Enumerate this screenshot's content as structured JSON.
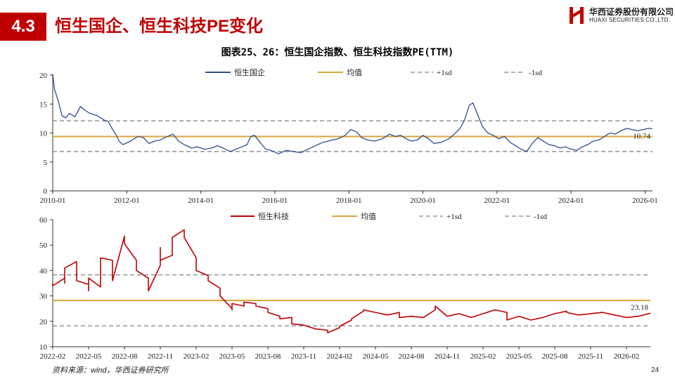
{
  "header": {
    "section_number": "4.3",
    "title": "恒生国企、恒生科技PE变化",
    "logo_cn": "华西证券股份有限公司",
    "logo_en": "HUAXI SECURITIES CO.,LTD."
  },
  "chart_caption": "图表25、26：恒生国企指数、恒生科技指数PE(TTM)",
  "footer": {
    "source": "资料来源：wind，华西证券研究所",
    "page_number": "24"
  },
  "colors": {
    "brand_red": "#c00000",
    "series_blue": "#2f4f8f",
    "series_red": "#c00000",
    "mean_gold": "#dba53a",
    "sd_gray": "#9a9a9a"
  },
  "chart_data": [
    {
      "type": "line",
      "title": "",
      "x_unit": "year",
      "xlim": [
        2010.0,
        2026.2
      ],
      "ylim": [
        0,
        20
      ],
      "yticks": [
        0,
        5,
        10,
        15,
        20
      ],
      "xticks": [
        {
          "x": 2010.0,
          "label": "2010-01"
        },
        {
          "x": 2012.0,
          "label": "2012-01"
        },
        {
          "x": 2014.0,
          "label": "2014-01"
        },
        {
          "x": 2016.0,
          "label": "2016-01"
        },
        {
          "x": 2018.0,
          "label": "2018-01"
        },
        {
          "x": 2020.0,
          "label": "2020-01"
        },
        {
          "x": 2022.0,
          "label": "2022-01"
        },
        {
          "x": 2024.0,
          "label": "2024-01"
        },
        {
          "x": 2026.0,
          "label": "2026-01"
        }
      ],
      "legend": [
        "恒生国企",
        "均值",
        "+1sd",
        "-1sd"
      ],
      "legend_position": "top",
      "reference_lines": {
        "mean": 9.4,
        "plus_1sd": 12.1,
        "minus_1sd": 6.8
      },
      "end_label": "10.74",
      "series": [
        {
          "name": "恒生国企",
          "x": [
            2010.0,
            2010.05,
            2010.15,
            2010.25,
            2010.35,
            2010.45,
            2010.6,
            2010.75,
            2010.85,
            2011.0,
            2011.2,
            2011.4,
            2011.5,
            2011.6,
            2011.7,
            2011.8,
            2011.9,
            2012.1,
            2012.3,
            2012.45,
            2012.6,
            2012.75,
            2012.9,
            2013.1,
            2013.25,
            2013.4,
            2013.55,
            2013.75,
            2013.9,
            2014.1,
            2014.3,
            2014.45,
            2014.6,
            2014.8,
            2014.95,
            2015.1,
            2015.25,
            2015.35,
            2015.45,
            2015.6,
            2015.75,
            2015.9,
            2016.1,
            2016.3,
            2016.5,
            2016.7,
            2016.9,
            2017.1,
            2017.3,
            2017.5,
            2017.7,
            2017.9,
            2018.05,
            2018.2,
            2018.35,
            2018.5,
            2018.7,
            2018.9,
            2019.1,
            2019.25,
            2019.4,
            2019.55,
            2019.7,
            2019.85,
            2020.0,
            2020.15,
            2020.3,
            2020.5,
            2020.7,
            2020.85,
            2021.0,
            2021.12,
            2021.25,
            2021.35,
            2021.45,
            2021.6,
            2021.75,
            2021.9,
            2022.05,
            2022.2,
            2022.35,
            2022.5,
            2022.65,
            2022.8,
            2022.95,
            2023.1,
            2023.25,
            2023.4,
            2023.55,
            2023.7,
            2023.85,
            2024.0,
            2024.15,
            2024.3,
            2024.45,
            2024.6,
            2024.75,
            2024.9,
            2025.05,
            2025.2,
            2025.35,
            2025.5,
            2025.65,
            2025.8,
            2025.95,
            2026.1,
            2026.2
          ],
          "values": [
            20.2,
            17.5,
            15.5,
            13.0,
            12.6,
            13.4,
            12.8,
            14.6,
            14.0,
            13.4,
            13.0,
            12.2,
            12.0,
            10.8,
            9.8,
            8.5,
            8.0,
            8.6,
            9.4,
            9.2,
            8.2,
            8.6,
            8.8,
            9.4,
            9.8,
            8.6,
            8.0,
            7.4,
            7.6,
            7.2,
            7.4,
            7.8,
            7.4,
            6.8,
            7.2,
            7.6,
            8.0,
            9.4,
            9.6,
            8.4,
            7.2,
            7.0,
            6.4,
            7.0,
            6.8,
            6.6,
            7.2,
            7.8,
            8.4,
            8.7,
            9.0,
            9.6,
            10.6,
            10.2,
            9.2,
            8.8,
            8.6,
            9.0,
            9.8,
            9.4,
            9.6,
            9.0,
            8.6,
            8.8,
            9.6,
            9.0,
            8.2,
            8.4,
            9.0,
            9.8,
            10.8,
            12.2,
            14.8,
            15.2,
            13.6,
            11.2,
            10.0,
            9.6,
            9.0,
            9.4,
            8.4,
            7.8,
            7.2,
            6.8,
            8.2,
            9.2,
            8.6,
            8.0,
            7.8,
            7.4,
            7.6,
            7.2,
            7.0,
            7.6,
            8.0,
            8.6,
            8.8,
            9.4,
            10.0,
            9.8,
            10.4,
            10.8,
            10.6,
            10.4,
            10.6,
            10.8,
            10.74
          ]
        },
        {
          "name": "均值",
          "constant": 9.4
        },
        {
          "name": "+1sd",
          "constant": 12.1
        },
        {
          "name": "-1sd",
          "constant": 6.8
        }
      ]
    },
    {
      "type": "line",
      "title": "",
      "x_unit": "month",
      "xlim": [
        "2022-02",
        "2026-04"
      ],
      "ylim": [
        10,
        60
      ],
      "yticks": [
        10,
        20,
        30,
        40,
        50,
        60
      ],
      "xticks": [
        "2022-02",
        "2022-05",
        "2022-08",
        "2022-11",
        "2023-02",
        "2023-05",
        "2023-08",
        "2023-11",
        "2024-02",
        "2024-05",
        "2024-08",
        "2024-11",
        "2025-02",
        "2025-05",
        "2025-08",
        "2025-11",
        "2026-02"
      ],
      "legend": [
        "恒生科技",
        "均值",
        "+1sd",
        "-1sd"
      ],
      "legend_position": "top",
      "reference_lines": {
        "mean": 28.2,
        "plus_1sd": 38.3,
        "minus_1sd": 18.2
      },
      "end_label": "23.18",
      "series": [
        {
          "name": "恒生科技",
          "x": [
            "2022-02",
            "2022-02",
            "2022-03",
            "2022-03",
            "2022-03",
            "2022-04",
            "2022-04",
            "2022-05",
            "2022-05",
            "2022-05",
            "2022-06",
            "2022-06",
            "2022-06",
            "2022-07",
            "2022-07",
            "2022-08",
            "2022-08",
            "2022-08",
            "2022-09",
            "2022-09",
            "2022-09",
            "2022-10",
            "2022-10",
            "2022-11",
            "2022-11",
            "2022-11",
            "2022-12",
            "2022-12",
            "2023-01",
            "2023-01",
            "2023-01",
            "2023-02",
            "2023-02",
            "2023-02",
            "2023-03",
            "2023-03",
            "2023-04",
            "2023-04",
            "2023-04",
            "2023-05",
            "2023-05",
            "2023-05",
            "2023-06",
            "2023-06",
            "2023-07",
            "2023-07",
            "2023-08",
            "2023-08",
            "2023-09",
            "2023-09",
            "2023-10",
            "2023-10",
            "2023-11",
            "2023-12",
            "2024-01",
            "2024-01",
            "2024-02",
            "2024-02",
            "2024-03",
            "2024-03",
            "2024-04",
            "2024-04",
            "2024-05",
            "2024-06",
            "2024-07",
            "2024-07",
            "2024-08",
            "2024-09",
            "2024-10",
            "2024-10",
            "2024-11",
            "2024-12",
            "2025-01",
            "2025-01",
            "2025-02",
            "2025-03",
            "2025-04",
            "2025-04",
            "2025-05",
            "2025-06",
            "2025-07",
            "2025-08",
            "2025-09",
            "2025-09",
            "2025-10",
            "2025-11",
            "2025-12",
            "2026-01",
            "2026-02",
            "2026-03",
            "2026-04"
          ],
          "values": [
            35.0,
            34.0,
            37.0,
            35.0,
            41.0,
            43.5,
            36.0,
            34.5,
            32.0,
            37.0,
            33.5,
            42.0,
            45.0,
            44.0,
            36.0,
            53.5,
            52.0,
            50.5,
            44.0,
            42.0,
            40.0,
            37.0,
            32.0,
            42.0,
            49.0,
            44.0,
            46.0,
            53.0,
            56.0,
            55.0,
            53.0,
            45.0,
            40.0,
            40.0,
            38.0,
            36.0,
            33.0,
            31.5,
            30.0,
            25.0,
            24.5,
            27.0,
            26.0,
            27.5,
            27.0,
            26.0,
            25.0,
            23.5,
            22.0,
            21.0,
            21.5,
            19.0,
            18.5,
            17.0,
            16.5,
            15.5,
            17.5,
            18.0,
            20.5,
            21.0,
            24.0,
            24.5,
            23.5,
            22.5,
            23.5,
            21.5,
            22.0,
            21.5,
            24.5,
            26.0,
            22.0,
            23.0,
            21.5,
            21.5,
            23.0,
            24.5,
            23.5,
            20.5,
            22.0,
            20.5,
            21.5,
            23.0,
            24.0,
            23.5,
            22.5,
            23.0,
            23.5,
            22.5,
            21.5,
            22.0,
            23.18
          ]
        },
        {
          "name": "均值",
          "constant": 28.2
        },
        {
          "name": "+1sd",
          "constant": 38.3
        },
        {
          "name": "-1sd",
          "constant": 18.2
        }
      ]
    }
  ]
}
